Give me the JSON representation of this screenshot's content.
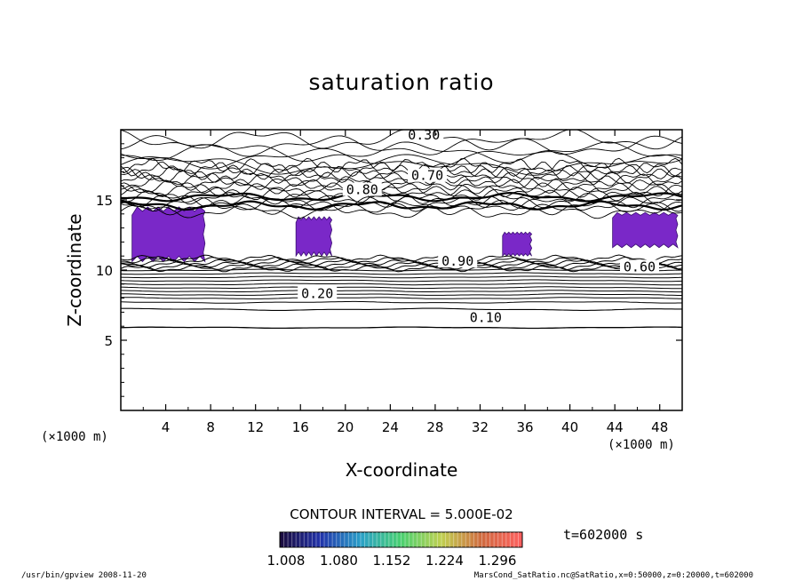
{
  "chart_data": {
    "type": "contour",
    "title": "saturation ratio",
    "xlabel": "X-coordinate",
    "ylabel": "Z-coordinate",
    "x_unit": "(×1000 m)",
    "z_unit": "(×1000 m)",
    "xlim": [
      0,
      50
    ],
    "ylim": [
      0,
      20
    ],
    "x_ticks": [
      4,
      8,
      12,
      16,
      20,
      24,
      28,
      32,
      36,
      40,
      44,
      48
    ],
    "y_ticks": [
      5,
      10,
      15
    ],
    "contour_interval_text": "CONTOUR INTERVAL = 5.000E-02",
    "time_text": "t=602000 s",
    "contour_labels": [
      {
        "text": "0.30",
        "x": 27,
        "z": 19.5
      },
      {
        "text": "0.70",
        "x": 27.3,
        "z": 16.6
      },
      {
        "text": "0.80",
        "x": 21.5,
        "z": 15.6
      },
      {
        "text": "0.10",
        "x": 32.5,
        "z": 6.5
      },
      {
        "text": "0.20",
        "x": 17.5,
        "z": 8.2
      },
      {
        "text": "0.90",
        "x": 30.0,
        "z": 10.5
      },
      {
        "text": "0.60",
        "x": 46.2,
        "z": 10.1
      }
    ],
    "supersaturated_regions": [
      {
        "x_range": [
          1.0,
          7.5
        ],
        "z_range": [
          10.6,
          14.5
        ]
      },
      {
        "x_range": [
          15.6,
          18.8
        ],
        "z_range": [
          11.0,
          13.8
        ]
      },
      {
        "x_range": [
          34.0,
          36.6
        ],
        "z_range": [
          11.0,
          12.7
        ]
      },
      {
        "x_range": [
          43.8,
          49.6
        ],
        "z_range": [
          11.6,
          14.1
        ]
      }
    ],
    "colorbar": {
      "tick_labels": [
        "1.008",
        "1.080",
        "1.152",
        "1.224",
        "1.296"
      ],
      "colors": [
        "#1a0a3a",
        "#2233aa",
        "#2aa0c8",
        "#4ad070",
        "#c0d050",
        "#d06a40",
        "#ff6060"
      ]
    }
  },
  "footer": {
    "left": "/usr/bin/gpview  2008-11-20",
    "right": "MarsCond_SatRatio.nc@SatRatio,x=0:50000,z=0:20000,t=602000"
  }
}
